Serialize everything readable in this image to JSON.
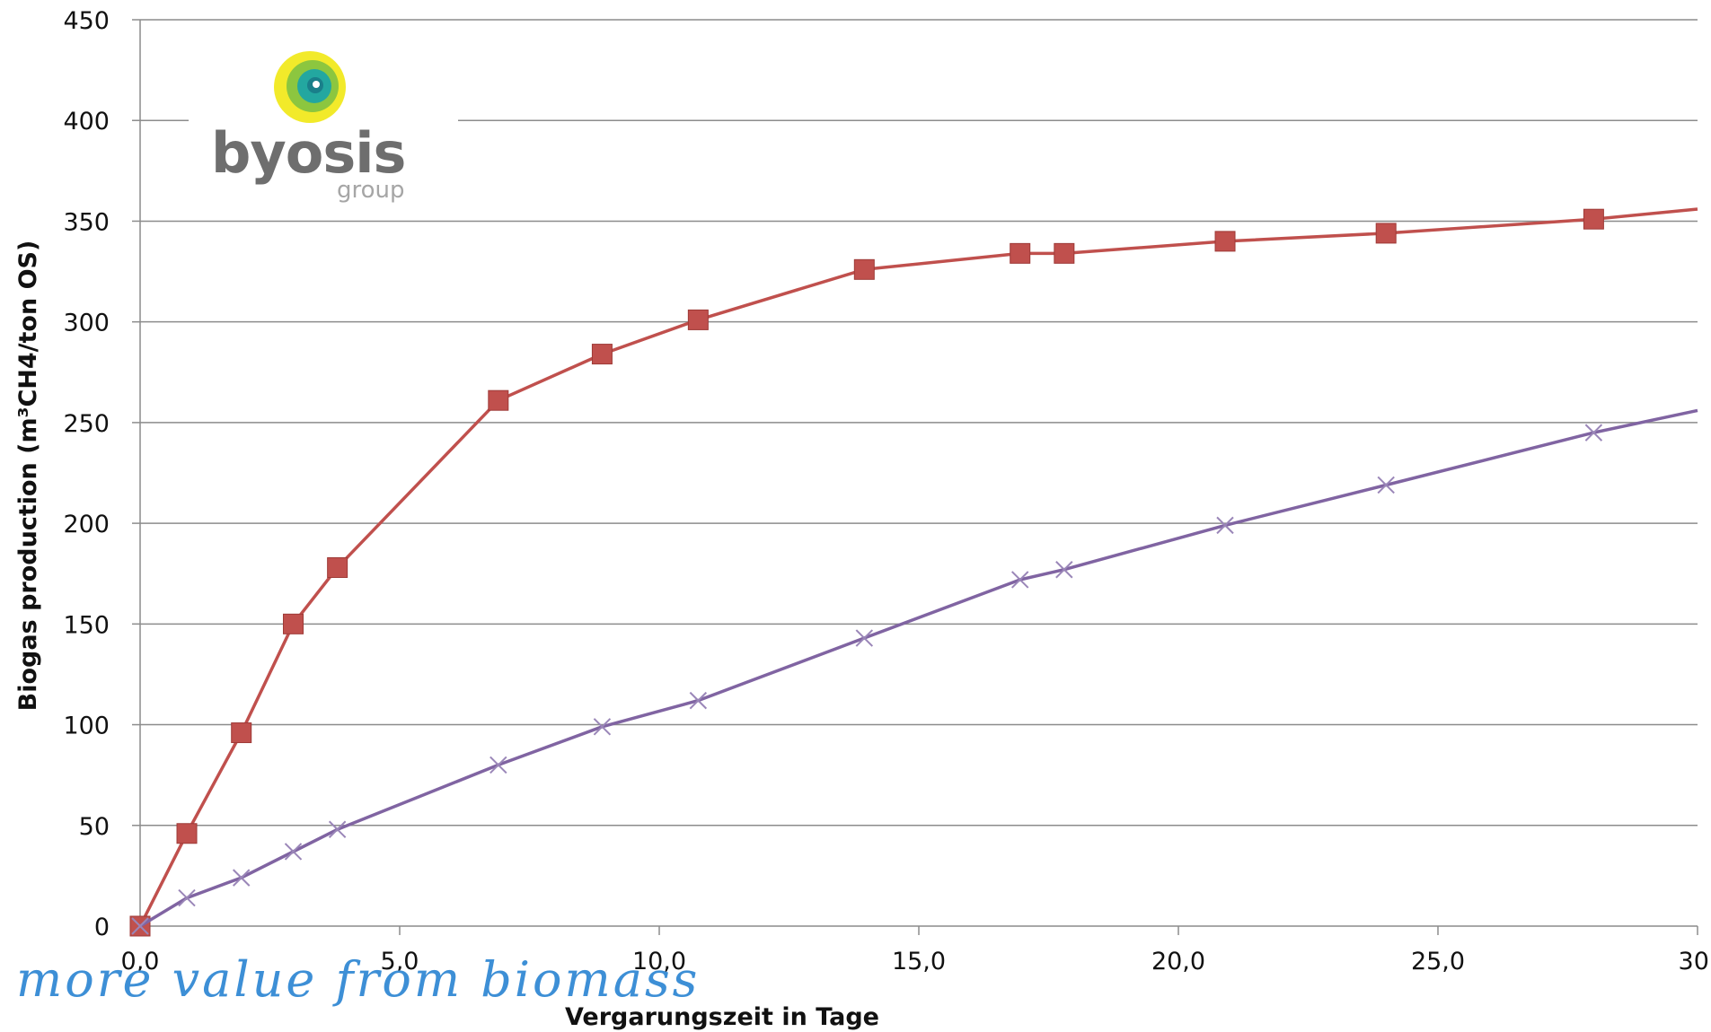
{
  "logo": {
    "name": "byosis",
    "sub": "group",
    "colors": [
      "#f2ea2a",
      "#8cc63f",
      "#23a7a0",
      "#1a7f8a"
    ]
  },
  "tagline": "more value from biomass",
  "chart_data": {
    "type": "line",
    "xlabel": "Vergarungszeit in Tage",
    "ylabel": "Biogas production (m³CH4/ton OS)",
    "xlim": [
      0,
      30
    ],
    "ylim": [
      0,
      450
    ],
    "x_ticks": [
      "0,0",
      "5,0",
      "10,0",
      "15,0",
      "20,0",
      "25,0",
      "30,"
    ],
    "y_ticks": [
      "0",
      "50",
      "100",
      "150",
      "200",
      "250",
      "300",
      "350",
      "400",
      "450"
    ],
    "grid": "horizontal",
    "series": [
      {
        "color": "#c0504d",
        "marker": "square",
        "x": [
          0,
          0.9,
          1.95,
          2.95,
          3.8,
          6.9,
          8.9,
          10.75,
          13.95,
          16.95,
          17.8,
          20.9,
          24.0,
          28.0,
          30.0
        ],
        "y": [
          0,
          46,
          96,
          150,
          178,
          261,
          284,
          301,
          326,
          334,
          334,
          340,
          344,
          351,
          356
        ]
      },
      {
        "color": "#8064a2",
        "marker": "x",
        "x": [
          0,
          0.9,
          1.95,
          2.95,
          3.8,
          6.9,
          8.9,
          10.75,
          13.95,
          16.95,
          17.8,
          20.9,
          24.0,
          28.0,
          30.0
        ],
        "y": [
          0,
          14,
          24,
          37,
          48,
          80,
          99,
          112,
          143,
          172,
          177,
          199,
          219,
          245,
          256
        ]
      }
    ]
  }
}
